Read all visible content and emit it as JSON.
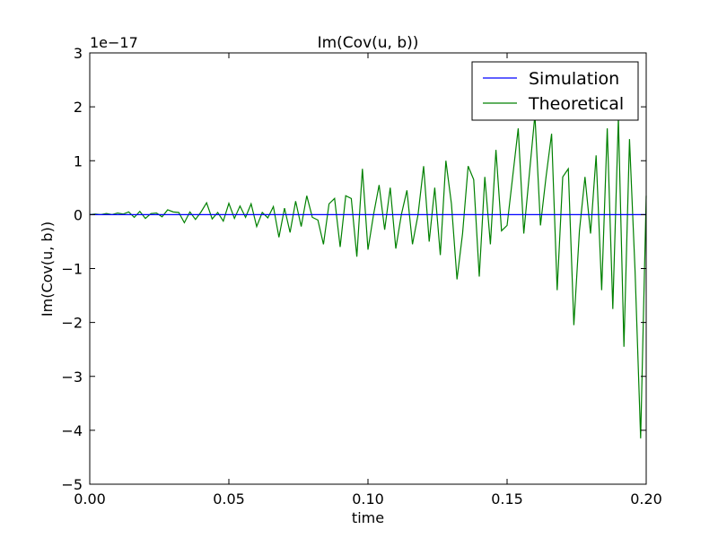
{
  "chart_data": {
    "type": "line",
    "title": "Im(Cov(u, b))",
    "xlabel": "time",
    "ylabel": "Im(Cov(u, b))",
    "y_scale_label": "1e−17",
    "xlim": [
      0.0,
      0.2
    ],
    "ylim": [
      -5,
      3
    ],
    "x_ticks": [
      0.0,
      0.05,
      0.1,
      0.15,
      0.2
    ],
    "x_tick_labels": [
      "0.00",
      "0.05",
      "0.10",
      "0.15",
      "0.20"
    ],
    "y_ticks": [
      3,
      2,
      1,
      0,
      -1,
      -2,
      -3,
      -4,
      -5
    ],
    "y_tick_labels": [
      "3",
      "2",
      "1",
      "0",
      "−1",
      "−2",
      "−3",
      "−4",
      "−5"
    ],
    "grid": false,
    "legend_position": "top-right",
    "series": [
      {
        "name": "Simulation",
        "color": "#0000ff",
        "x": [
          0.0,
          0.2
        ],
        "y": [
          0,
          0
        ]
      },
      {
        "name": "Theoretical",
        "color": "#008000",
        "x": [
          0.0,
          0.002,
          0.004,
          0.006,
          0.008,
          0.01,
          0.012,
          0.014,
          0.016,
          0.018,
          0.02,
          0.022,
          0.024,
          0.026,
          0.028,
          0.03,
          0.032,
          0.034,
          0.036,
          0.038,
          0.04,
          0.042,
          0.044,
          0.046,
          0.048,
          0.05,
          0.052,
          0.054,
          0.056,
          0.058,
          0.06,
          0.062,
          0.064,
          0.066,
          0.068,
          0.07,
          0.072,
          0.074,
          0.076,
          0.078,
          0.08,
          0.082,
          0.084,
          0.086,
          0.088,
          0.09,
          0.092,
          0.094,
          0.096,
          0.098,
          0.1,
          0.102,
          0.104,
          0.106,
          0.108,
          0.11,
          0.112,
          0.114,
          0.116,
          0.118,
          0.12,
          0.122,
          0.124,
          0.126,
          0.128,
          0.13,
          0.132,
          0.134,
          0.136,
          0.138,
          0.14,
          0.142,
          0.144,
          0.146,
          0.148,
          0.15,
          0.152,
          0.154,
          0.156,
          0.158,
          0.16,
          0.162,
          0.164,
          0.166,
          0.168,
          0.17,
          0.172,
          0.174,
          0.176,
          0.178,
          0.18,
          0.182,
          0.184,
          0.186,
          0.188,
          0.19,
          0.192,
          0.194,
          0.196,
          0.198,
          0.2
        ],
        "y": [
          0,
          0.01,
          0,
          0.02,
          0,
          0.03,
          0.01,
          0.05,
          -0.05,
          0.06,
          -0.07,
          0.02,
          0.03,
          -0.04,
          0.09,
          0.05,
          0.04,
          -0.15,
          0.05,
          -0.09,
          0.05,
          0.22,
          -0.08,
          0.04,
          -0.12,
          0.21,
          -0.07,
          0.16,
          -0.05,
          0.2,
          -0.22,
          0.04,
          -0.06,
          0.15,
          -0.42,
          0.12,
          -0.33,
          0.25,
          -0.22,
          0.35,
          -0.05,
          -0.1,
          -0.55,
          0.2,
          0.3,
          -0.6,
          0.35,
          0.3,
          -0.78,
          0.85,
          -0.65,
          0.0,
          0.55,
          -0.28,
          0.5,
          -0.63,
          0.0,
          0.45,
          -0.55,
          0.0,
          0.9,
          -0.5,
          0.5,
          -0.75,
          1.0,
          0.2,
          -1.2,
          -0.35,
          0.9,
          0.65,
          -1.15,
          0.7,
          -0.55,
          1.2,
          -0.3,
          -0.2,
          0.7,
          1.6,
          -0.35,
          0.75,
          1.85,
          -0.2,
          0.7,
          1.5,
          -1.4,
          0.7,
          0.85,
          -2.05,
          -0.3,
          0.7,
          -0.35,
          1.1,
          -1.4,
          1.6,
          -1.75,
          1.8,
          -2.45,
          1.4,
          -1.05,
          -4.15,
          0.35
        ]
      }
    ]
  }
}
